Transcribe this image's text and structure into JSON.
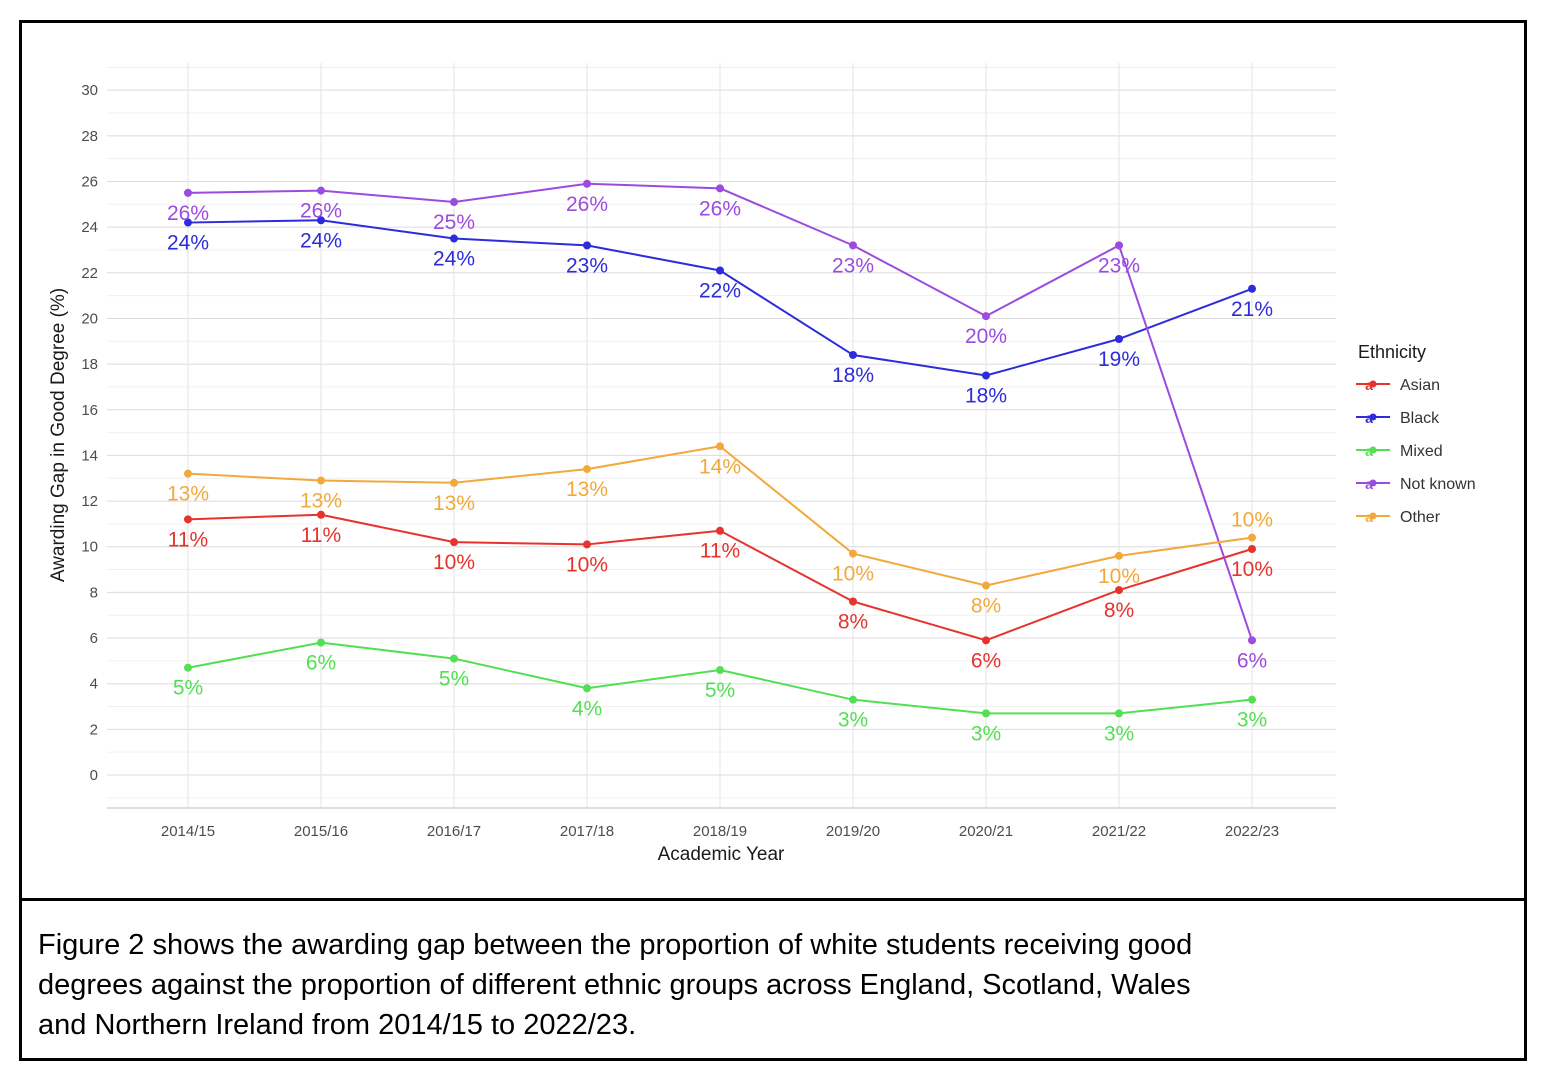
{
  "figure": {
    "caption_lines": [
      "Figure 2 shows the awarding gap between the proportion of white students receiving good",
      "degrees against the proportion of different ethnic groups across England, Scotland, Wales",
      "and Northern Ireland from 2014/15 to 2022/23."
    ]
  },
  "chart_data": {
    "type": "line",
    "title": "",
    "xlabel": "Academic Year",
    "ylabel": "Awarding Gap in Good Degree (%)",
    "categories": [
      "2014/15",
      "2015/16",
      "2016/17",
      "2017/18",
      "2018/19",
      "2019/20",
      "2020/21",
      "2021/22",
      "2022/23"
    ],
    "ylim": [
      0,
      30
    ],
    "yticks": [
      0,
      2,
      4,
      6,
      8,
      10,
      12,
      14,
      16,
      18,
      20,
      22,
      24,
      26,
      28,
      30
    ],
    "grid": true,
    "legend_title": "Ethnicity",
    "legend_position": "right",
    "legend_key_glyph": "a",
    "series": [
      {
        "name": "Asian",
        "color": "#E6332D",
        "values": [
          11.2,
          11.4,
          10.2,
          10.1,
          10.7,
          7.6,
          5.9,
          8.1,
          9.9
        ],
        "point_labels": [
          "11%",
          "11%",
          "10%",
          "10%",
          "11%",
          "8%",
          "6%",
          "8%",
          "10%"
        ]
      },
      {
        "name": "Black",
        "color": "#2C2CDB",
        "values": [
          24.2,
          24.3,
          23.5,
          23.2,
          22.1,
          18.4,
          17.5,
          19.1,
          21.3
        ],
        "point_labels": [
          "24%",
          "24%",
          "24%",
          "23%",
          "22%",
          "18%",
          "18%",
          "19%",
          "21%"
        ]
      },
      {
        "name": "Mixed",
        "color": "#53DF53",
        "values": [
          4.7,
          5.8,
          5.1,
          3.8,
          4.6,
          3.3,
          2.7,
          2.7,
          3.3
        ],
        "point_labels": [
          "5%",
          "6%",
          "5%",
          "4%",
          "5%",
          "3%",
          "3%",
          "3%",
          "3%"
        ]
      },
      {
        "name": "Not known",
        "color": "#9C4BE0",
        "values": [
          25.5,
          25.6,
          25.1,
          25.9,
          25.7,
          23.2,
          20.1,
          23.2,
          5.9
        ],
        "point_labels": [
          "26%",
          "26%",
          "25%",
          "26%",
          "26%",
          "23%",
          "20%",
          "23%",
          "6%"
        ]
      },
      {
        "name": "Other",
        "color": "#F2A93C",
        "values": [
          13.2,
          12.9,
          12.8,
          13.4,
          14.4,
          9.7,
          8.3,
          9.6,
          10.4
        ],
        "point_labels": [
          "13%",
          "13%",
          "13%",
          "13%",
          "14%",
          "10%",
          "8%",
          "10%",
          "10%"
        ],
        "labels_above_indices": [
          8
        ]
      }
    ]
  }
}
